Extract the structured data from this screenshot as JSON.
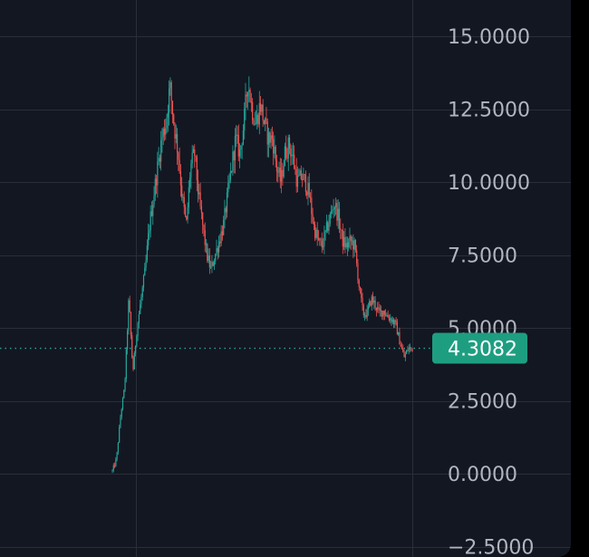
{
  "chart_data": {
    "type": "candlestick",
    "title": "",
    "xlabel": "",
    "ylabel": "",
    "ylim": [
      -2.85,
      16.25
    ],
    "y_ticks": [
      {
        "value": 15,
        "label": "15.0000"
      },
      {
        "value": 12.5,
        "label": "12.5000"
      },
      {
        "value": 10,
        "label": "10.0000"
      },
      {
        "value": 7.5,
        "label": "7.5000"
      },
      {
        "value": 5,
        "label": "5.0000"
      },
      {
        "value": 2.5,
        "label": "2.5000"
      },
      {
        "value": 0,
        "label": "0.0000"
      },
      {
        "value": -2.5,
        "label": "−2.5000"
      }
    ],
    "current_price": {
      "value": 4.3082,
      "label": "4.3082"
    },
    "grid": true,
    "price_path": [
      0.1,
      0.5,
      2.0,
      3.0,
      6.0,
      3.5,
      5.0,
      6.0,
      7.0,
      8.5,
      9.5,
      10.5,
      11.5,
      12.0,
      13.3,
      12.0,
      11.0,
      9.5,
      8.5,
      10.5,
      11.0,
      9.5,
      8.5,
      7.5,
      7.0,
      7.5,
      8.0,
      8.5,
      9.5,
      10.5,
      11.5,
      11.0,
      12.0,
      13.5,
      12.5,
      12.0,
      12.7,
      12.0,
      11.5,
      11.5,
      10.5,
      10.0,
      11.0,
      11.3,
      10.8,
      10.0,
      10.2,
      10.0,
      9.5,
      8.5,
      8.0,
      7.8,
      8.3,
      8.8,
      9.3,
      8.8,
      8.0,
      7.8,
      8.0,
      7.8,
      6.5,
      5.5,
      5.5,
      6.0,
      5.8,
      5.5,
      5.6,
      5.4,
      5.3,
      5.1,
      4.5,
      4.0,
      4.3,
      4.3
    ],
    "colors": {
      "up": "#26a69a",
      "down": "#ef5350",
      "background": "#131722",
      "grid": "#2a2e39",
      "axis_text": "#b2b5be",
      "price_line": "#26a69a",
      "price_badge": "#1e9e81"
    }
  }
}
